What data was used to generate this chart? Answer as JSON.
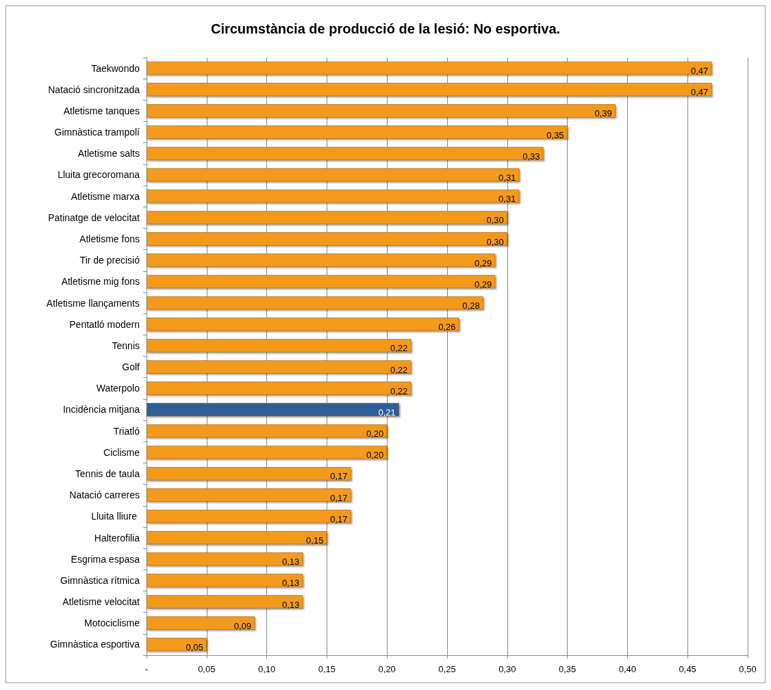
{
  "chart_data": {
    "type": "bar",
    "orientation": "horizontal",
    "title": "Circumstància de producció de la lesió: No esportiva.",
    "categories": [
      "Taekwondo",
      "Natació sincronitzada",
      "Atletisme tanques",
      "Gimnàstica trampolí",
      "Atletisme salts",
      "Lluita grecoromana",
      "Atletisme marxa",
      "Patinatge de velocitat",
      "Atletisme fons",
      "Tir de precisió",
      "Atletisme mig fons",
      "Atletisme llançaments",
      "Pentatló modern",
      "Tennis",
      "Golf",
      "Waterpolo",
      "Incidència mitjana",
      "Triatló",
      "Ciclisme",
      "Tennis de taula",
      "Natació carreres",
      "Lluita lliure ",
      "Halterofilia",
      "Esgrima espasa",
      "Gimnàstica rítmica",
      "Atletisme velocitat",
      "Motociclisme",
      "Gimnàstica esportiva"
    ],
    "values": [
      0.47,
      0.47,
      0.39,
      0.35,
      0.33,
      0.31,
      0.31,
      0.3,
      0.3,
      0.29,
      0.29,
      0.28,
      0.26,
      0.22,
      0.22,
      0.22,
      0.21,
      0.2,
      0.2,
      0.17,
      0.17,
      0.17,
      0.15,
      0.13,
      0.13,
      0.13,
      0.09,
      0.05
    ],
    "value_labels": [
      "0,47",
      "0,47",
      "0,39",
      "0,35",
      "0,33",
      "0,31",
      "0,31",
      "0,30",
      "0,30",
      "0,29",
      "0,29",
      "0,28",
      "0,26",
      "0,22",
      "0,22",
      "0,22",
      "0,21",
      "0,20",
      "0,20",
      "0,17",
      "0,17",
      "0,17",
      "0,15",
      "0,13",
      "0,13",
      "0,13",
      "0,09",
      "0,05"
    ],
    "colors": [
      "#f39a1e",
      "#f39a1e",
      "#f39a1e",
      "#f39a1e",
      "#f39a1e",
      "#f39a1e",
      "#f39a1e",
      "#f39a1e",
      "#f39a1e",
      "#f39a1e",
      "#f39a1e",
      "#f39a1e",
      "#f39a1e",
      "#f39a1e",
      "#f39a1e",
      "#f39a1e",
      "#2f5f98",
      "#f39a1e",
      "#f39a1e",
      "#f39a1e",
      "#f39a1e",
      "#f39a1e",
      "#f39a1e",
      "#f39a1e",
      "#f39a1e",
      "#f39a1e",
      "#f39a1e",
      "#f39a1e"
    ],
    "xlim": [
      0,
      0.5
    ],
    "xticks": [
      {
        "value": 0,
        "label": "-"
      },
      {
        "value": 0.05,
        "label": "0,05"
      },
      {
        "value": 0.1,
        "label": "0,10"
      },
      {
        "value": 0.15,
        "label": "0,15"
      },
      {
        "value": 0.2,
        "label": "0,20"
      },
      {
        "value": 0.25,
        "label": "0,25"
      },
      {
        "value": 0.3,
        "label": "0,30"
      },
      {
        "value": 0.35,
        "label": "0,35"
      },
      {
        "value": 0.4,
        "label": "0,40"
      },
      {
        "value": 0.45,
        "label": "0,45"
      },
      {
        "value": 0.5,
        "label": "0,50"
      }
    ],
    "grid": "x"
  }
}
